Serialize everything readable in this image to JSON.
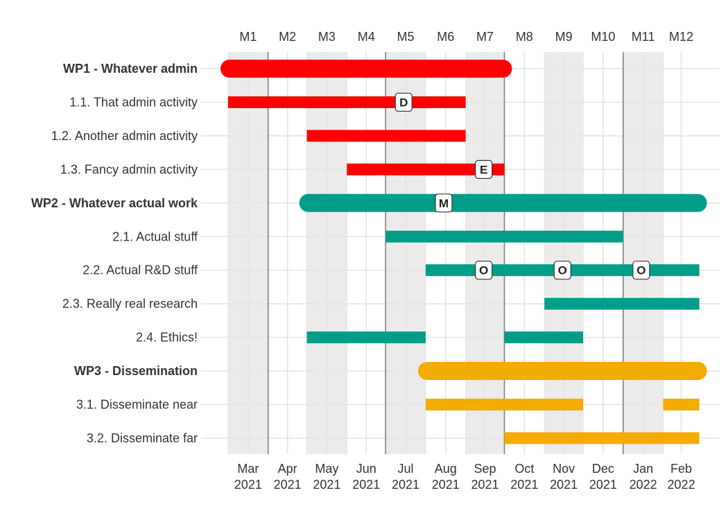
{
  "chart_data": {
    "type": "gantt",
    "x_unit": "month",
    "x_range": [
      "2021-03",
      "2022-02"
    ],
    "months": [
      {
        "top": "M1",
        "bottom": [
          "Mar",
          "2021"
        ]
      },
      {
        "top": "M2",
        "bottom": [
          "Apr",
          "2021"
        ]
      },
      {
        "top": "M3",
        "bottom": [
          "May",
          "2021"
        ]
      },
      {
        "top": "M4",
        "bottom": [
          "Jun",
          "2021"
        ]
      },
      {
        "top": "M5",
        "bottom": [
          "Jul",
          "2021"
        ]
      },
      {
        "top": "M6",
        "bottom": [
          "Aug",
          "2021"
        ]
      },
      {
        "top": "M7",
        "bottom": [
          "Sep",
          "2021"
        ]
      },
      {
        "top": "M8",
        "bottom": [
          "Oct",
          "2021"
        ]
      },
      {
        "top": "M9",
        "bottom": [
          "Nov",
          "2021"
        ]
      },
      {
        "top": "M10",
        "bottom": [
          "Dec",
          "2021"
        ]
      },
      {
        "top": "M11",
        "bottom": [
          "Jan",
          "2022"
        ]
      },
      {
        "top": "M12",
        "bottom": [
          "Feb",
          "2022"
        ]
      }
    ],
    "shaded_months": [
      "2021-03",
      "2021-05",
      "2021-07",
      "2021-09",
      "2021-11",
      "2022-01"
    ],
    "vertical_lines": [
      "2021-04-01",
      "2021-07-01",
      "2021-10-01",
      "2022-01-01"
    ],
    "colors": {
      "WP1": "#ff0000",
      "WP2": "#009e89",
      "WP3": "#f2ad00"
    },
    "tasks": [
      {
        "label": "WP1 - Whatever admin",
        "wp": "WP1",
        "is_wp": true,
        "segments": [
          {
            "start": "2021-03-01",
            "end": "2021-10-01"
          }
        ]
      },
      {
        "label": "1.1. That admin activity",
        "wp": "WP1",
        "is_wp": false,
        "segments": [
          {
            "start": "2021-03-01",
            "end": "2021-09-01"
          }
        ]
      },
      {
        "label": "1.2. Another admin activity",
        "wp": "WP1",
        "is_wp": false,
        "segments": [
          {
            "start": "2021-05-01",
            "end": "2021-09-01"
          }
        ]
      },
      {
        "label": "1.3. Fancy admin activity",
        "wp": "WP1",
        "is_wp": false,
        "segments": [
          {
            "start": "2021-06-01",
            "end": "2021-10-01"
          }
        ]
      },
      {
        "label": "WP2 - Whatever actual work",
        "wp": "WP2",
        "is_wp": true,
        "segments": [
          {
            "start": "2021-05-01",
            "end": "2022-03-01"
          }
        ]
      },
      {
        "label": "2.1. Actual stuff",
        "wp": "WP2",
        "is_wp": false,
        "segments": [
          {
            "start": "2021-07-01",
            "end": "2022-01-01"
          }
        ]
      },
      {
        "label": "2.2. Actual R&D stuff",
        "wp": "WP2",
        "is_wp": false,
        "segments": [
          {
            "start": "2021-08-01",
            "end": "2022-03-01"
          }
        ]
      },
      {
        "label": "2.3. Really real research",
        "wp": "WP2",
        "is_wp": false,
        "segments": [
          {
            "start": "2021-11-01",
            "end": "2022-03-01"
          }
        ]
      },
      {
        "label": "2.4. Ethics!",
        "wp": "WP2",
        "is_wp": false,
        "segments": [
          {
            "start": "2021-05-01",
            "end": "2021-08-01"
          },
          {
            "start": "2021-10-01",
            "end": "2021-12-01"
          }
        ]
      },
      {
        "label": "WP3 - Dissemination",
        "wp": "WP3",
        "is_wp": true,
        "segments": [
          {
            "start": "2021-08-01",
            "end": "2022-03-01"
          }
        ]
      },
      {
        "label": "3.1. Disseminate near",
        "wp": "WP3",
        "is_wp": false,
        "segments": [
          {
            "start": "2021-08-01",
            "end": "2021-12-01"
          },
          {
            "start": "2022-02-01",
            "end": "2022-03-01"
          }
        ]
      },
      {
        "label": "3.2. Disseminate far",
        "wp": "WP3",
        "is_wp": false,
        "segments": [
          {
            "start": "2021-10-01",
            "end": "2022-03-01"
          }
        ]
      }
    ],
    "milestones": [
      {
        "task": "1.1. That admin activity",
        "date": "2021-07-15",
        "label": "D"
      },
      {
        "task": "1.3. Fancy admin activity",
        "date": "2021-09-15",
        "label": "E"
      },
      {
        "task": "WP2 - Whatever actual work",
        "date": "2021-08-15",
        "label": "M"
      },
      {
        "task": "2.2. Actual R&D stuff",
        "date": "2021-09-15",
        "label": "O"
      },
      {
        "task": "2.2. Actual R&D stuff",
        "date": "2021-11-15",
        "label": "O"
      },
      {
        "task": "2.2. Actual R&D stuff",
        "date": "2022-01-15",
        "label": "O"
      }
    ],
    "title": "",
    "xlabel": "",
    "ylabel": "",
    "legend": "none",
    "grid": true
  }
}
